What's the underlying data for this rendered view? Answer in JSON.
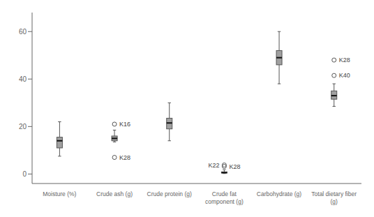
{
  "chart_data": {
    "type": "box",
    "categories": [
      "Moisture (%)",
      "Crude ash (g)",
      "Crude protein (g)",
      "Crude fat\ncomponent (g)",
      "Carbohydrate (g)",
      "Total dietary fiber\n(g)"
    ],
    "boxes": [
      {
        "whisker_low": 7.5,
        "q1": 11.0,
        "median": 14.0,
        "q3": 15.5,
        "whisker_high": 22.0,
        "outliers": [],
        "outlier_labels": []
      },
      {
        "whisker_low": 13.5,
        "q1": 14.0,
        "median": 15.0,
        "q3": 16.0,
        "whisker_high": 18.5,
        "outliers": [
          21.0,
          7.0
        ],
        "outlier_labels": [
          "K16",
          "K28"
        ]
      },
      {
        "whisker_low": 14.0,
        "q1": 19.0,
        "median": 21.5,
        "q3": 23.5,
        "whisker_high": 30.0,
        "outliers": [],
        "outlier_labels": []
      },
      {
        "whisker_low": 0.2,
        "q1": 0.4,
        "median": 0.6,
        "q3": 0.9,
        "whisker_high": 1.8,
        "outliers": [
          3.2,
          3.8
        ],
        "outlier_labels": [
          "K28",
          "K22"
        ]
      },
      {
        "whisker_low": 38.0,
        "q1": 46.0,
        "median": 49.0,
        "q3": 52.0,
        "whisker_high": 60.0,
        "outliers": [],
        "outlier_labels": []
      },
      {
        "whisker_low": 28.5,
        "q1": 31.5,
        "median": 33.0,
        "q3": 35.0,
        "whisker_high": 38.0,
        "outliers": [
          48.0,
          41.5
        ],
        "outlier_labels": [
          "K28",
          "K40"
        ]
      }
    ],
    "color": "#a0a0a0",
    "ylim": [
      -4,
      68
    ],
    "yticks": [
      0,
      20,
      40,
      60
    ]
  }
}
